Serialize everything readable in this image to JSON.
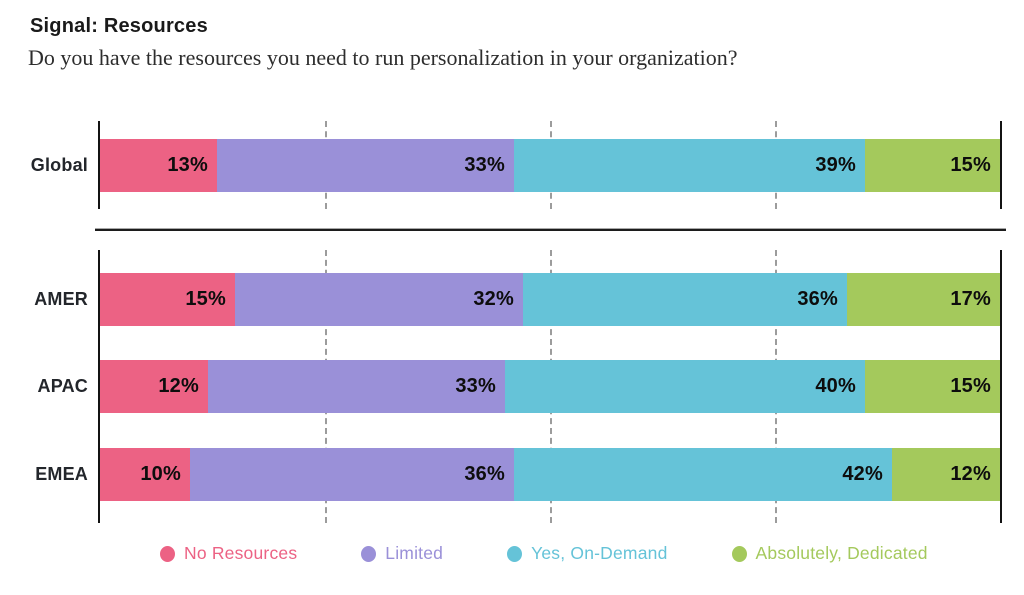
{
  "header": {
    "title": "Signal: Resources",
    "question": "Do you have the resources you need to run personalization in your organization?"
  },
  "chart_data": {
    "type": "bar",
    "orientation": "horizontal",
    "stacked": true,
    "unit": "%",
    "xlim": [
      0,
      100
    ],
    "gridlines_pct": [
      25,
      50,
      75
    ],
    "legend_position": "bottom",
    "categories": [
      "Global",
      "AMER",
      "APAC",
      "EMEA"
    ],
    "groups": [
      [
        "Global"
      ],
      [
        "AMER",
        "APAC",
        "EMEA"
      ]
    ],
    "series": [
      {
        "name": "No Resources",
        "color": "#EC6284",
        "values": [
          13,
          15,
          12,
          10
        ]
      },
      {
        "name": "Limited",
        "color": "#9A90D8",
        "values": [
          33,
          32,
          33,
          36
        ]
      },
      {
        "name": "Yes, On-Demand",
        "color": "#65C3D8",
        "values": [
          39,
          36,
          40,
          42
        ]
      },
      {
        "name": "Absolutely, Dedicated",
        "color": "#A4C95C",
        "values": [
          15,
          17,
          15,
          12
        ]
      }
    ]
  }
}
